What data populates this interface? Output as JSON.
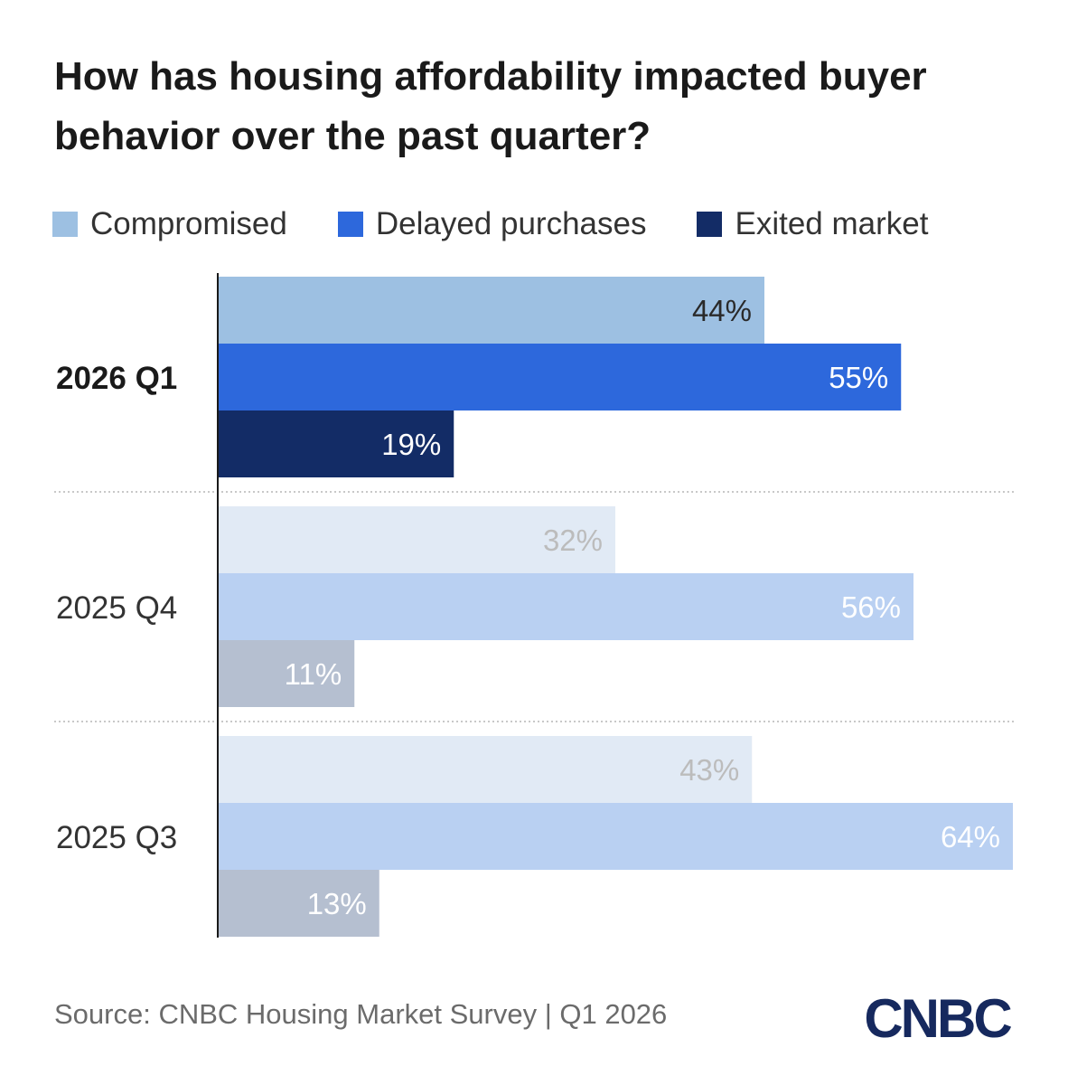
{
  "title": "How has housing affordability impacted buyer behavior over the past quarter?",
  "source": "Source: CNBC Housing Market Survey | Q1 2026",
  "logo_text": "CNBC",
  "colors": {
    "compromised": "#9dc0e2",
    "delayed": "#2d68dc",
    "exited": "#132c66",
    "compromised_muted": "#e1eaf5",
    "delayed_muted": "#b9d0f2",
    "exited_muted": "#b5bfd0",
    "logo": "#16295e"
  },
  "chart_data": {
    "type": "bar",
    "orientation": "horizontal",
    "title": "How has housing affordability impacted buyer behavior over the past quarter?",
    "categories": [
      "2026 Q1",
      "2025 Q4",
      "2025 Q3"
    ],
    "highlight_category": "2026 Q1",
    "series": [
      {
        "name": "Compromised",
        "values": [
          44,
          32,
          43
        ],
        "labels": [
          "44%",
          "32%",
          "43%"
        ]
      },
      {
        "name": "Delayed purchases",
        "values": [
          55,
          56,
          64
        ],
        "labels": [
          "55%",
          "56%",
          "64%"
        ]
      },
      {
        "name": "Exited market",
        "values": [
          19,
          11,
          13
        ],
        "labels": [
          "19%",
          "11%",
          "13%"
        ]
      }
    ],
    "xlim": [
      0,
      64
    ],
    "unit": "%",
    "legend_position": "top-left",
    "grid": false,
    "group_separators": "dotted"
  }
}
